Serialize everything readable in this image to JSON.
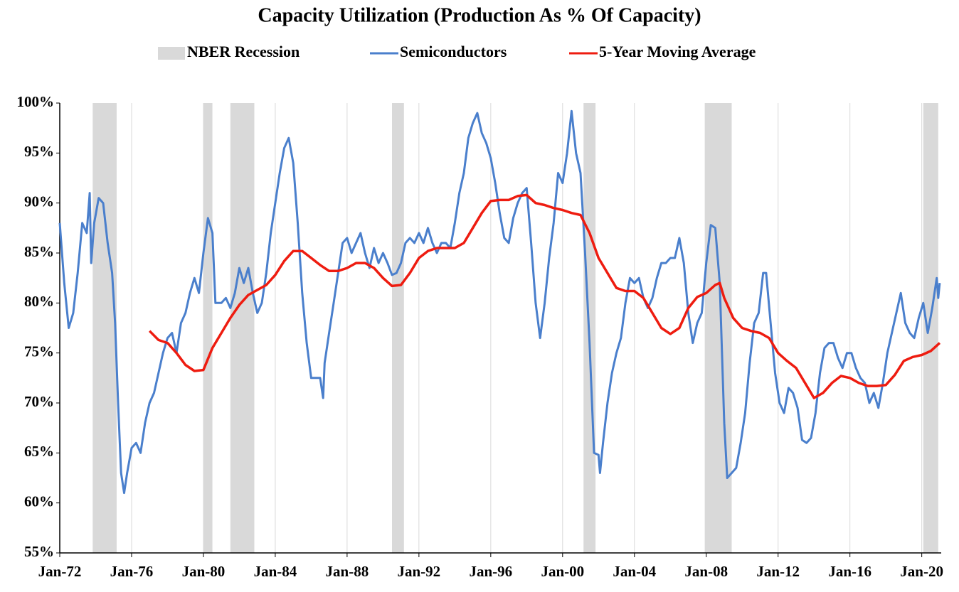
{
  "chart_data": {
    "type": "line",
    "title": "Capacity Utilization (Production As % Of Capacity)",
    "xlim": [
      "Jan-72",
      "Feb-21"
    ],
    "xticks": [
      "Jan-72",
      "Jan-76",
      "Jan-80",
      "Jan-84",
      "Jan-88",
      "Jan-92",
      "Jan-96",
      "Jan-00",
      "Jan-04",
      "Jan-08",
      "Jan-12",
      "Jan-16",
      "Jan-20"
    ],
    "ylim": [
      55,
      100
    ],
    "yticks": [
      {
        "value": 55,
        "label": "55%"
      },
      {
        "value": 60,
        "label": "60%"
      },
      {
        "value": 65,
        "label": "65%"
      },
      {
        "value": 70,
        "label": "70%"
      },
      {
        "value": 75,
        "label": "75%"
      },
      {
        "value": 80,
        "label": "80%"
      },
      {
        "value": 85,
        "label": "85%"
      },
      {
        "value": 90,
        "label": "90%"
      },
      {
        "value": 95,
        "label": "95%"
      },
      {
        "value": 100,
        "label": "100%"
      }
    ],
    "grid": true,
    "recessions": {
      "name": "NBER Recession",
      "color": "#d9d9d9",
      "periods": [
        [
          "Nov-73",
          "Mar-75"
        ],
        [
          "Jan-80",
          "Jul-80"
        ],
        [
          "Jul-81",
          "Nov-82"
        ],
        [
          "Jul-90",
          "Mar-91"
        ],
        [
          "Mar-01",
          "Nov-01"
        ],
        [
          "Dec-07",
          "Jun-09"
        ],
        [
          "Feb-20",
          "Dec-20"
        ]
      ]
    },
    "series": [
      {
        "name": "Semiconductors",
        "color": "#4a7fcc",
        "x": [
          "Jan-72",
          "Apr-72",
          "Jul-72",
          "Oct-72",
          "Jan-73",
          "Apr-73",
          "Jul-73",
          "Sep-73",
          "Oct-73",
          "Dec-73",
          "Mar-74",
          "Jun-74",
          "Sep-74",
          "Dec-74",
          "Feb-75",
          "Apr-75",
          "Jun-75",
          "Aug-75",
          "Oct-75",
          "Jan-76",
          "Apr-76",
          "Jul-76",
          "Oct-76",
          "Jan-77",
          "Apr-77",
          "Jul-77",
          "Oct-77",
          "Jan-78",
          "Apr-78",
          "Jul-78",
          "Oct-78",
          "Jan-79",
          "Apr-79",
          "Jul-79",
          "Oct-79",
          "Jan-80",
          "Apr-80",
          "Jul-80",
          "Sep-80",
          "Jan-81",
          "Apr-81",
          "Jul-81",
          "Oct-81",
          "Jan-82",
          "Apr-82",
          "Jul-82",
          "Oct-82",
          "Jan-83",
          "Apr-83",
          "Jul-83",
          "Oct-83",
          "Jan-84",
          "Apr-84",
          "Jul-84",
          "Oct-84",
          "Jan-85",
          "Apr-85",
          "Jul-85",
          "Oct-85",
          "Jan-86",
          "Apr-86",
          "Jul-86",
          "Sep-86",
          "Oct-86",
          "Jan-87",
          "Apr-87",
          "Jul-87",
          "Oct-87",
          "Jan-88",
          "Apr-88",
          "Jul-88",
          "Oct-88",
          "Jan-89",
          "Apr-89",
          "Jul-89",
          "Oct-89",
          "Jan-90",
          "Apr-90",
          "Jul-90",
          "Oct-90",
          "Jan-91",
          "Apr-91",
          "Jul-91",
          "Oct-91",
          "Jan-92",
          "Apr-92",
          "Jul-92",
          "Oct-92",
          "Jan-93",
          "Apr-93",
          "Jul-93",
          "Oct-93",
          "Jan-94",
          "Apr-94",
          "Jul-94",
          "Oct-94",
          "Jan-95",
          "Apr-95",
          "Jul-95",
          "Oct-95",
          "Jan-96",
          "Apr-96",
          "Jul-96",
          "Oct-96",
          "Jan-97",
          "Apr-97",
          "Jul-97",
          "Oct-97",
          "Jan-98",
          "Apr-98",
          "Jul-98",
          "Oct-98",
          "Jan-99",
          "Apr-99",
          "Jul-99",
          "Oct-99",
          "Jan-00",
          "Apr-00",
          "Jul-00",
          "Oct-00",
          "Jan-01",
          "Apr-01",
          "Jul-01",
          "Oct-01",
          "Jan-02",
          "Feb-02",
          "Apr-02",
          "Jul-02",
          "Oct-02",
          "Jan-03",
          "Apr-03",
          "Jul-03",
          "Oct-03",
          "Jan-04",
          "Apr-04",
          "Jul-04",
          "Oct-04",
          "Jan-05",
          "Apr-05",
          "Jul-05",
          "Oct-05",
          "Jan-06",
          "Apr-06",
          "Jul-06",
          "Oct-06",
          "Jan-07",
          "Apr-07",
          "Jul-07",
          "Oct-07",
          "Jan-08",
          "Apr-08",
          "Jul-08",
          "Oct-08",
          "Jan-09",
          "Mar-09",
          "Jun-09",
          "Sep-09",
          "Dec-09",
          "Mar-10",
          "Jun-10",
          "Sep-10",
          "Dec-10",
          "Mar-11",
          "May-11",
          "Aug-11",
          "Nov-11",
          "Feb-12",
          "May-12",
          "Aug-12",
          "Nov-12",
          "Feb-13",
          "May-13",
          "Aug-13",
          "Nov-13",
          "Feb-14",
          "May-14",
          "Aug-14",
          "Nov-14",
          "Feb-15",
          "May-15",
          "Aug-15",
          "Nov-15",
          "Feb-16",
          "May-16",
          "Aug-16",
          "Nov-16",
          "Feb-17",
          "May-17",
          "Aug-17",
          "Nov-17",
          "Feb-18",
          "May-18",
          "Aug-18",
          "Nov-18",
          "Feb-19",
          "May-19",
          "Aug-19",
          "Nov-19",
          "Feb-20",
          "May-20",
          "Aug-20",
          "Nov-20",
          "Dec-20",
          "Jan-21"
        ],
        "values": [
          88,
          82,
          77.5,
          79,
          83,
          88,
          87,
          91,
          84,
          88,
          90.5,
          90,
          86,
          83,
          78,
          70,
          63,
          61,
          63,
          65.5,
          66,
          65,
          68,
          70,
          71,
          73,
          75,
          76.5,
          77,
          75,
          78,
          79,
          81,
          82.5,
          81,
          85,
          88.5,
          87,
          80,
          80,
          80.5,
          79.5,
          81,
          83.5,
          82,
          83.5,
          81,
          79,
          80,
          83,
          87,
          90,
          93,
          95.5,
          96.5,
          94,
          88,
          81,
          76,
          72.5,
          72.5,
          72.5,
          70.5,
          74,
          77,
          80,
          83,
          86,
          86.5,
          85,
          86,
          87,
          85,
          83.5,
          85.5,
          84,
          85,
          84,
          82.8,
          83,
          84,
          86,
          86.5,
          86,
          87,
          86,
          87.5,
          86,
          85,
          86,
          86,
          85.5,
          88,
          91,
          93,
          96.5,
          98,
          99,
          97,
          96,
          94.5,
          92,
          89,
          86.5,
          86,
          88.5,
          90,
          91,
          91.5,
          86,
          80,
          76.5,
          80,
          84.5,
          88,
          93,
          92,
          95,
          99.2,
          95,
          93,
          85,
          76,
          65,
          64.8,
          63,
          66,
          70,
          73,
          75,
          76.5,
          80,
          82.5,
          82,
          82.5,
          80.5,
          79.5,
          80.5,
          82.5,
          84,
          84,
          84.5,
          84.5,
          86.5,
          84,
          79,
          76,
          78,
          79,
          84,
          87.8,
          87.5,
          82,
          68,
          62.5,
          63,
          63.5,
          66,
          69,
          74,
          78,
          79,
          83,
          83,
          78,
          73,
          70,
          69,
          71.5,
          71,
          69.5,
          66.3,
          66,
          66.5,
          69,
          73,
          75.5,
          76,
          76,
          74.5,
          73.5,
          75,
          75,
          73.5,
          72.5,
          72,
          70,
          71,
          69.5,
          72,
          75,
          77,
          79,
          81,
          78,
          77,
          76.5,
          78.5,
          80,
          77,
          79.5,
          82.5,
          80.5,
          82
        ]
      },
      {
        "name": "5-Year Moving Average",
        "color": "#ee1c10",
        "x": [
          "Jan-77",
          "Jul-77",
          "Jan-78",
          "Jul-78",
          "Jan-79",
          "Jul-79",
          "Jan-80",
          "Jul-80",
          "Jan-81",
          "Jul-81",
          "Jan-82",
          "Jul-82",
          "Jan-83",
          "Jul-83",
          "Jan-84",
          "Jul-84",
          "Jan-85",
          "Jul-85",
          "Jan-86",
          "Jul-86",
          "Jan-87",
          "Jul-87",
          "Jan-88",
          "Jul-88",
          "Jan-89",
          "Jul-89",
          "Jan-90",
          "Jul-90",
          "Jan-91",
          "Jul-91",
          "Jan-92",
          "Jul-92",
          "Jan-93",
          "Jul-93",
          "Jan-94",
          "Jul-94",
          "Jan-95",
          "Jul-95",
          "Jan-96",
          "Jul-96",
          "Jan-97",
          "Jul-97",
          "Jan-98",
          "Jul-98",
          "Jan-99",
          "Jul-99",
          "Jan-00",
          "Jul-00",
          "Jan-01",
          "Jul-01",
          "Jan-02",
          "Jul-02",
          "Jan-03",
          "Jul-03",
          "Jan-04",
          "Jul-04",
          "Jan-05",
          "Jul-05",
          "Jan-06",
          "Jul-06",
          "Jan-07",
          "Jul-07",
          "Jan-08",
          "Jul-08",
          "Oct-08",
          "Jan-09",
          "Jul-09",
          "Jan-10",
          "Jul-10",
          "Jan-11",
          "Jul-11",
          "Jan-12",
          "Jul-12",
          "Jan-13",
          "Jul-13",
          "Jan-14",
          "Jul-14",
          "Jan-15",
          "Jul-15",
          "Jan-16",
          "Jul-16",
          "Jan-17",
          "Jul-17",
          "Jan-18",
          "Jul-18",
          "Jan-19",
          "Jul-19",
          "Jan-20",
          "Jul-20",
          "Jan-21"
        ],
        "values": [
          77.2,
          76.3,
          76,
          75,
          73.8,
          73.2,
          73.3,
          75.5,
          77,
          78.5,
          79.8,
          80.8,
          81.3,
          81.8,
          82.8,
          84.2,
          85.2,
          85.2,
          84.5,
          83.8,
          83.2,
          83.2,
          83.5,
          84,
          84,
          83.5,
          82.5,
          81.7,
          81.8,
          83,
          84.5,
          85.2,
          85.5,
          85.5,
          85.5,
          86,
          87.5,
          89,
          90.2,
          90.3,
          90.3,
          90.7,
          90.8,
          90,
          89.8,
          89.5,
          89.3,
          89,
          88.8,
          87,
          84.5,
          83,
          81.5,
          81.2,
          81.2,
          80.5,
          79,
          77.5,
          76.9,
          77.5,
          79.5,
          80.6,
          81,
          81.8,
          82,
          80.5,
          78.5,
          77.5,
          77.2,
          77,
          76.5,
          75,
          74.2,
          73.5,
          72,
          70.5,
          71,
          72,
          72.7,
          72.5,
          72,
          71.7,
          71.7,
          71.8,
          72.8,
          74.2,
          74.6,
          74.8,
          75.2,
          76
        ]
      }
    ]
  }
}
